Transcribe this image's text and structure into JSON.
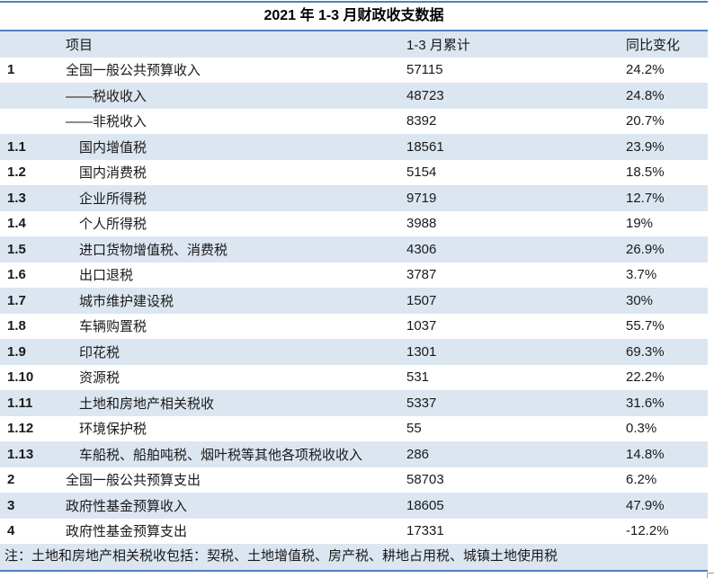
{
  "title": "2021 年 1-3 月财政收支数据",
  "table": {
    "columns": {
      "item": "项目",
      "period": "1-3 月累计",
      "yoy": "同比变化"
    },
    "rows": [
      {
        "num": "1",
        "label": "全国一般公共预算收入",
        "value": "57115",
        "yoy": "24.2%",
        "indent": 0
      },
      {
        "num": "",
        "label": "——税收收入",
        "value": "48723",
        "yoy": "24.8%",
        "indent": 0
      },
      {
        "num": "",
        "label": "——非税收入",
        "value": "8392",
        "yoy": "20.7%",
        "indent": 0
      },
      {
        "num": "1.1",
        "label": "国内增值税",
        "value": "18561",
        "yoy": "23.9%",
        "indent": 1
      },
      {
        "num": "1.2",
        "label": "国内消费税",
        "value": "5154",
        "yoy": "18.5%",
        "indent": 1
      },
      {
        "num": "1.3",
        "label": "企业所得税",
        "value": "9719",
        "yoy": "12.7%",
        "indent": 1
      },
      {
        "num": "1.4",
        "label": "个人所得税",
        "value": "3988",
        "yoy": "19%",
        "indent": 1
      },
      {
        "num": "1.5",
        "label": "进口货物增值税、消费税",
        "value": "4306",
        "yoy": "26.9%",
        "indent": 1
      },
      {
        "num": "1.6",
        "label": "出口退税",
        "value": "3787",
        "yoy": "3.7%",
        "indent": 1
      },
      {
        "num": "1.7",
        "label": "城市维护建设税",
        "value": "1507",
        "yoy": "30%",
        "indent": 1
      },
      {
        "num": "1.8",
        "label": "车辆购置税",
        "value": "1037",
        "yoy": "55.7%",
        "indent": 1
      },
      {
        "num": "1.9",
        "label": "印花税",
        "value": "1301",
        "yoy": "69.3%",
        "indent": 1
      },
      {
        "num": "1.10",
        "label": "资源税",
        "value": "531",
        "yoy": "22.2%",
        "indent": 1
      },
      {
        "num": "1.11",
        "label": "土地和房地产相关税收",
        "value": "5337",
        "yoy": "31.6%",
        "indent": 1
      },
      {
        "num": "1.12",
        "label": "环境保护税",
        "value": "55",
        "yoy": "0.3%",
        "indent": 1
      },
      {
        "num": "1.13",
        "label": "车船税、船舶吨税、烟叶税等其他各项税收收入",
        "value": "286",
        "yoy": "14.8%",
        "indent": 1
      },
      {
        "num": "2",
        "label": "全国一般公共预算支出",
        "value": "58703",
        "yoy": "6.2%",
        "indent": 0
      },
      {
        "num": "3",
        "label": "政府性基金预算收入",
        "value": "18605",
        "yoy": "47.9%",
        "indent": 0
      },
      {
        "num": "4",
        "label": "政府性基金预算支出",
        "value": "17331",
        "yoy": "-12.2%",
        "indent": 0
      }
    ],
    "note": "注：土地和房地产相关税收包括：契税、土地增值税、房产税、耕地占用税、城镇土地使用税"
  },
  "colors": {
    "banding": "#dce6f1",
    "border": "#4f81bd",
    "text": "#1a1a1a"
  }
}
